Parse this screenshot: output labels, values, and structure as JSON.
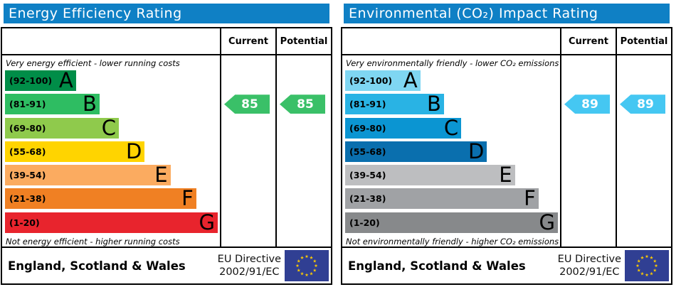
{
  "eu_flag": {
    "background": "#303f93",
    "star_color": "#ffcc00"
  },
  "chart_data": [
    {
      "type": "bar",
      "chart_kind": "epc-rating-scale",
      "title": "Energy Efficiency Rating",
      "title_bg": "#0f80c5",
      "top_note": "Very energy efficient - lower running costs",
      "bottom_note": "Not energy efficient - higher running costs",
      "columns": [
        "Current",
        "Potential"
      ],
      "value_range": [
        1,
        100
      ],
      "bands": [
        {
          "letter": "A",
          "range_label": "(92-100)",
          "min": 92,
          "max": 100,
          "color": "#008d48",
          "bar_pct": 33
        },
        {
          "letter": "B",
          "range_label": "(81-91)",
          "min": 81,
          "max": 91,
          "color": "#2ebd62",
          "bar_pct": 44
        },
        {
          "letter": "C",
          "range_label": "(69-80)",
          "min": 69,
          "max": 80,
          "color": "#8fca4c",
          "bar_pct": 53
        },
        {
          "letter": "D",
          "range_label": "(55-68)",
          "min": 55,
          "max": 68,
          "color": "#ffd400",
          "bar_pct": 65
        },
        {
          "letter": "E",
          "range_label": "(39-54)",
          "min": 39,
          "max": 54,
          "color": "#fbab60",
          "bar_pct": 77
        },
        {
          "letter": "F",
          "range_label": "(21-38)",
          "min": 21,
          "max": 38,
          "color": "#f08023",
          "bar_pct": 89
        },
        {
          "letter": "G",
          "range_label": "(1-20)",
          "min": 1,
          "max": 20,
          "color": "#e8242d",
          "bar_pct": 99
        }
      ],
      "current": {
        "value": 85,
        "band": "B"
      },
      "potential": {
        "value": 85,
        "band": "B"
      },
      "arrow_color": "#3ac068",
      "footer": {
        "region": "England, Scotland & Wales",
        "directive_lines": [
          "EU Directive",
          "2002/91/EC"
        ]
      }
    },
    {
      "type": "bar",
      "chart_kind": "epc-rating-scale",
      "title": "Environmental (CO₂) Impact Rating",
      "title_bg": "#0f80c5",
      "top_note": "Very environmentally friendly - lower CO₂ emissions",
      "bottom_note": "Not environmentally friendly - higher CO₂ emissions",
      "columns": [
        "Current",
        "Potential"
      ],
      "value_range": [
        1,
        100
      ],
      "bands": [
        {
          "letter": "A",
          "range_label": "(92-100)",
          "min": 92,
          "max": 100,
          "color": "#7fd6f2",
          "bar_pct": 35
        },
        {
          "letter": "B",
          "range_label": "(81-91)",
          "min": 81,
          "max": 91,
          "color": "#29b3e4",
          "bar_pct": 46
        },
        {
          "letter": "C",
          "range_label": "(69-80)",
          "min": 69,
          "max": 80,
          "color": "#0b95d2",
          "bar_pct": 54
        },
        {
          "letter": "D",
          "range_label": "(55-68)",
          "min": 55,
          "max": 68,
          "color": "#0a6fae",
          "bar_pct": 66
        },
        {
          "letter": "E",
          "range_label": "(39-54)",
          "min": 39,
          "max": 54,
          "color": "#bdbec0",
          "bar_pct": 79
        },
        {
          "letter": "F",
          "range_label": "(21-38)",
          "min": 21,
          "max": 38,
          "color": "#a0a2a5",
          "bar_pct": 90
        },
        {
          "letter": "G",
          "range_label": "(1-20)",
          "min": 1,
          "max": 20,
          "color": "#87898b",
          "bar_pct": 99
        }
      ],
      "current": {
        "value": 89,
        "band": "B"
      },
      "potential": {
        "value": 89,
        "band": "B"
      },
      "arrow_color": "#45c7f2",
      "footer": {
        "region": "England, Scotland & Wales",
        "directive_lines": [
          "EU Directive",
          "2002/91/EC"
        ]
      }
    }
  ]
}
